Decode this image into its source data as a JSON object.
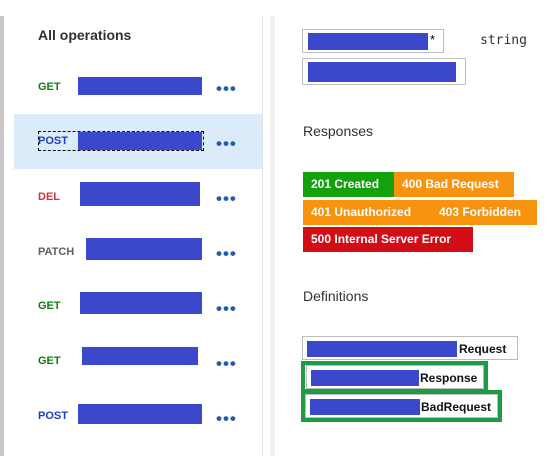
{
  "operations_panel": {
    "title": "All operations",
    "operations": [
      {
        "method": "GET",
        "more": "•••"
      },
      {
        "method": "POST",
        "more": "•••",
        "selected": true
      },
      {
        "method": "DEL",
        "more": "•••"
      },
      {
        "method": "PATCH",
        "more": "•••"
      },
      {
        "method": "GET",
        "more": "•••"
      },
      {
        "method": "GET",
        "more": "•••"
      },
      {
        "method": "POST",
        "more": "•••"
      }
    ]
  },
  "details": {
    "parameter": {
      "required_mark": "*",
      "type": "string"
    },
    "responses": {
      "title": "Responses",
      "codes": [
        {
          "label": "201 Created",
          "color": "#13a10e"
        },
        {
          "label": "400 Bad Request",
          "color": "#f7930e"
        },
        {
          "label": "401 Unauthorized",
          "color": "#f7930e"
        },
        {
          "label": "403 Forbidden",
          "color": "#f7930e"
        },
        {
          "label": "500 Internal Server Error",
          "color": "#d10e16"
        }
      ]
    },
    "definitions": {
      "title": "Definitions",
      "items": [
        {
          "visible_suffix": "Request"
        },
        {
          "visible_suffix": "Response",
          "highlighted": true
        },
        {
          "visible_suffix": "BadRequest",
          "highlighted": true
        }
      ]
    }
  },
  "colors": {
    "accent_blue": "#1d5ea8",
    "selected_row": "#dcebfa",
    "redaction": "#3b48cc",
    "highlight_outline": "#1e9c45"
  }
}
